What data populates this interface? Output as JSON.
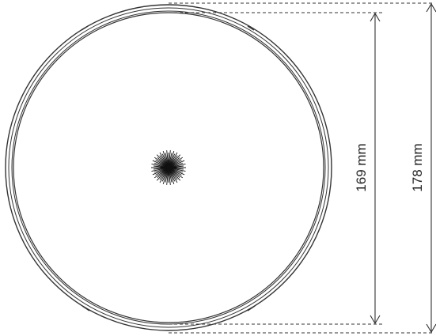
{
  "figure": {
    "inner_dimension": {
      "label": "169 mm"
    },
    "outer_dimension": {
      "label": "178 mm"
    }
  },
  "colors": {
    "line": "#333333",
    "background": "#ffffff"
  }
}
